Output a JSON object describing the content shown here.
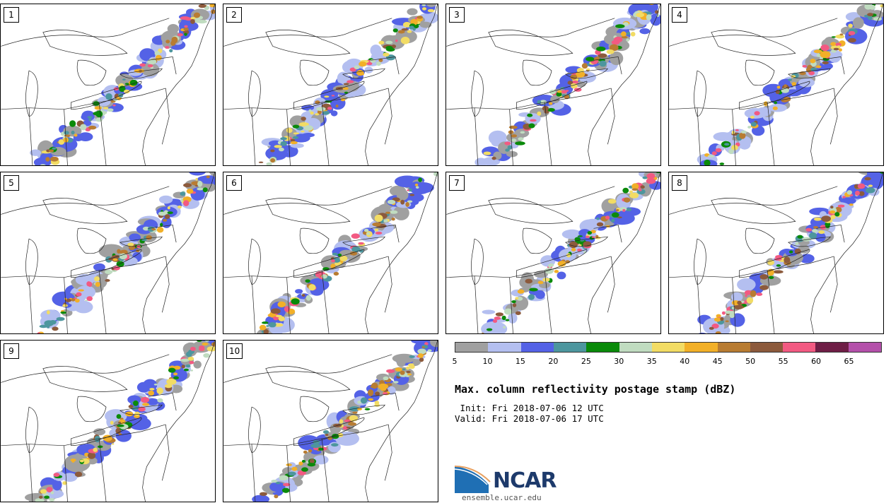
{
  "panels": [
    {
      "label": "1",
      "seed": 11
    },
    {
      "label": "2",
      "seed": 23
    },
    {
      "label": "3",
      "seed": 37
    },
    {
      "label": "4",
      "seed": 41
    },
    {
      "label": "5",
      "seed": 53
    },
    {
      "label": "6",
      "seed": 67
    },
    {
      "label": "7",
      "seed": 71
    },
    {
      "label": "8",
      "seed": 89
    },
    {
      "label": "9",
      "seed": 97
    },
    {
      "label": "10",
      "seed": 103
    }
  ],
  "colorbar": {
    "colors": [
      "#a0a0a0",
      "#b4bff0",
      "#5462e6",
      "#4d969e",
      "#0a8a0a",
      "#c0dcc0",
      "#f2dc64",
      "#f2b028",
      "#b87c32",
      "#8c5a3c",
      "#f25a82",
      "#6e1e46",
      "#b450aa"
    ],
    "ticks": [
      "5",
      "10",
      "15",
      "20",
      "25",
      "30",
      "35",
      "40",
      "45",
      "50",
      "55",
      "60",
      "65"
    ]
  },
  "title": "Max. column reflectivity postage stamp (dBZ)",
  "init_line": " Init: Fri 2018-07-06 12 UTC",
  "valid_line": "Valid: Fri 2018-07-06 17 UTC",
  "logo": {
    "text": "NCAR",
    "url": "ensemble.ucar.edu"
  },
  "icons": {
    "logo": "ncar-logo-icon"
  }
}
